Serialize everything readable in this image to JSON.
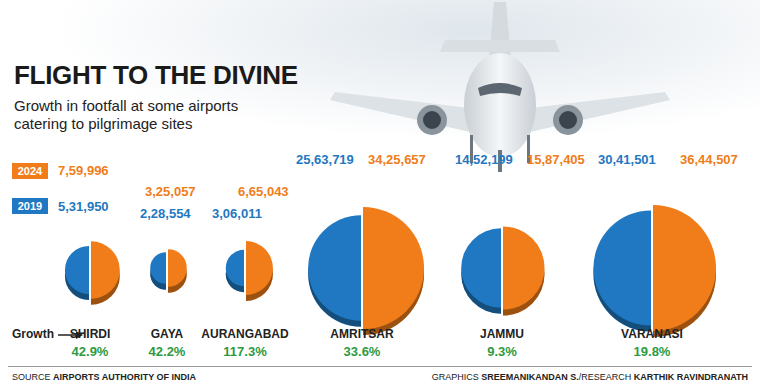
{
  "chart_data": {
    "type": "pie",
    "title": "FLIGHT TO THE DIVINE",
    "subtitle": "Growth in footfall at some airports catering to pilgrimage sites",
    "categories": [
      "SHIRDI",
      "GAYA",
      "AURANGABAD",
      "AMRITSAR",
      "JAMMU",
      "VARANASI"
    ],
    "series": [
      {
        "name": "2019",
        "color": "#1f78c1",
        "values": [
          531950,
          228554,
          306011,
          2563719,
          1452199,
          3041501
        ],
        "value_labels": [
          "5,31,950",
          "2,28,554",
          "3,06,011",
          "25,63,719",
          "14,52,199",
          "30,41,501"
        ]
      },
      {
        "name": "2024",
        "color": "#f07d1a",
        "values": [
          759996,
          325057,
          665043,
          3425657,
          1587405,
          3644507
        ],
        "value_labels": [
          "7,59,996",
          "3,25,057",
          "6,65,043",
          "34,25,657",
          "15,87,405",
          "36,44,507"
        ]
      }
    ],
    "data_labels": true,
    "growth": {
      "label": "Growth",
      "color": "#2e9a3f",
      "values": [
        42.9,
        42.2,
        117.3,
        33.6,
        9.3,
        19.8
      ],
      "value_labels": [
        "42.9%",
        "42.2%",
        "117.3%",
        "33.6%",
        "9.3%",
        "19.8%"
      ]
    },
    "source": {
      "label": "SOURCE",
      "text": "AIRPORTS AUTHORITY OF INDIA"
    },
    "credit": [
      "GRAPHICS",
      "SREEMANIKANDAN S.",
      "/RESEARCH",
      "KARTHIK RAVINDRANATH"
    ]
  }
}
